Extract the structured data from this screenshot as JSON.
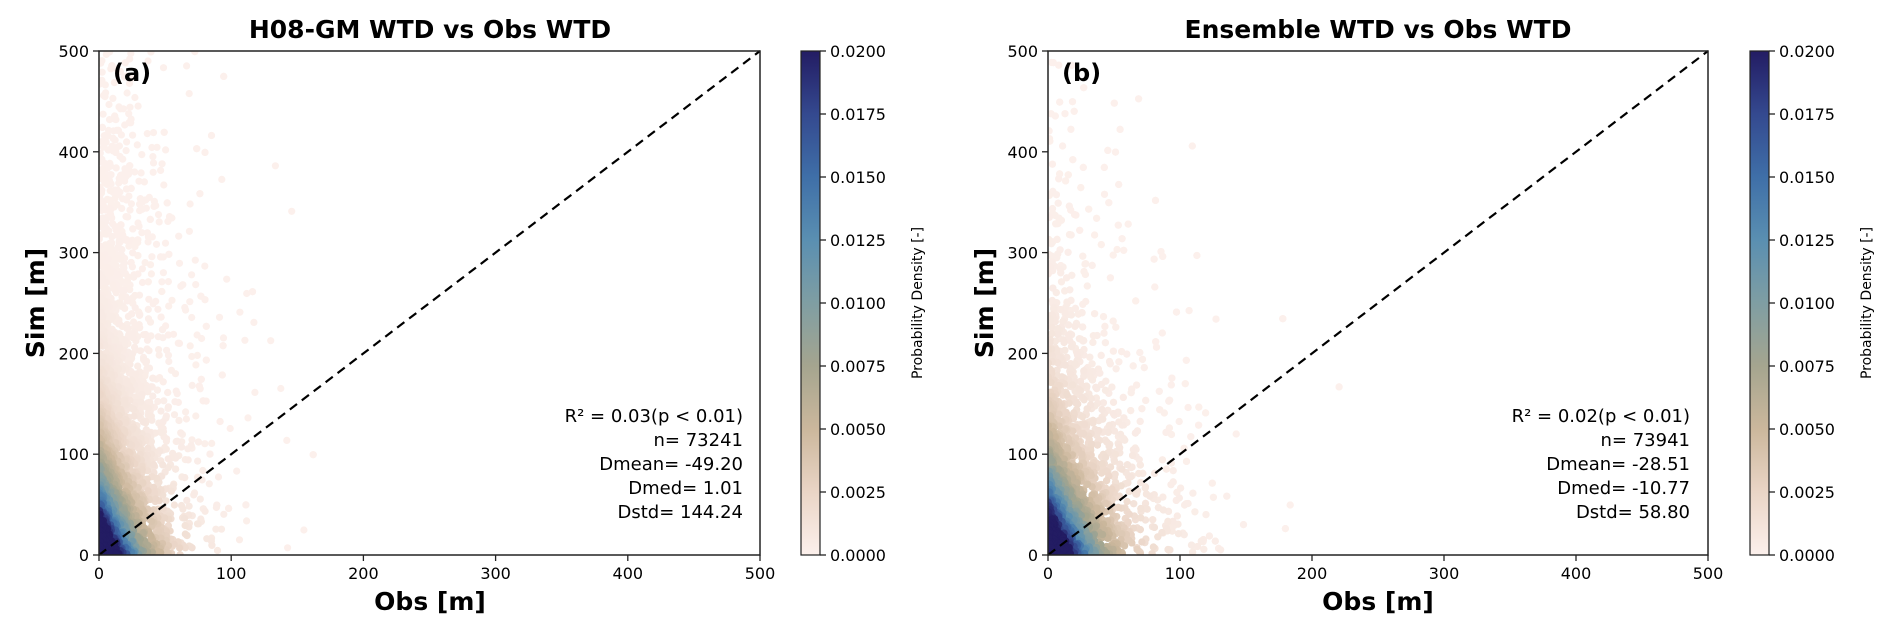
{
  "chart_data": [
    {
      "type": "scatter",
      "subtype": "density-colored scatter",
      "title": "H08-GM WTD vs Obs WTD",
      "panel_label": "(a)",
      "xlabel": "Obs [m]",
      "ylabel": "Sim [m]",
      "xlim": [
        0,
        500
      ],
      "ylim": [
        0,
        500
      ],
      "xticks": [
        "0",
        "100",
        "200",
        "300",
        "400",
        "500"
      ],
      "yticks": [
        "0",
        "100",
        "200",
        "300",
        "400",
        "500"
      ],
      "one_to_one_line": true,
      "grid": false,
      "stats": {
        "r2": "R² = 0.03(p < 0.01)",
        "n": "n= 73241",
        "dmean": "Dmean= -49.20",
        "dmed": "Dmed= 1.01",
        "dstd": "Dstd= 144.24"
      },
      "colorbar": {
        "label": "Probability Density [-]",
        "range": [
          0,
          0.02
        ],
        "ticks": [
          "0.0000",
          "0.0025",
          "0.0050",
          "0.0075",
          "0.0100",
          "0.0125",
          "0.0150",
          "0.0175",
          "0.0200"
        ]
      }
    },
    {
      "type": "scatter",
      "subtype": "density-colored scatter",
      "title": "Ensemble WTD vs Obs WTD",
      "panel_label": "(b)",
      "xlabel": "Obs [m]",
      "ylabel": "Sim [m]",
      "xlim": [
        0,
        500
      ],
      "ylim": [
        0,
        500
      ],
      "xticks": [
        "0",
        "100",
        "200",
        "300",
        "400",
        "500"
      ],
      "yticks": [
        "0",
        "100",
        "200",
        "300",
        "400",
        "500"
      ],
      "one_to_one_line": true,
      "grid": false,
      "stats": {
        "r2": "R² = 0.02(p < 0.01)",
        "n": "n= 73941",
        "dmean": "Dmean= -28.51",
        "dmed": "Dmed= -10.77",
        "dstd": "Dstd= 58.80"
      },
      "colorbar": {
        "label": "Probability Density [-]",
        "range": [
          0,
          0.02
        ],
        "ticks": [
          "0.0000",
          "0.0025",
          "0.0050",
          "0.0075",
          "0.0100",
          "0.0125",
          "0.0150",
          "0.0175",
          "0.0200"
        ]
      }
    }
  ],
  "colormap": [
    "#fcf0ec",
    "#ead5c6",
    "#cbb79c",
    "#a5a58f",
    "#7f9ea3",
    "#5a8fb1",
    "#3f6fa8",
    "#34498f",
    "#231c63"
  ]
}
